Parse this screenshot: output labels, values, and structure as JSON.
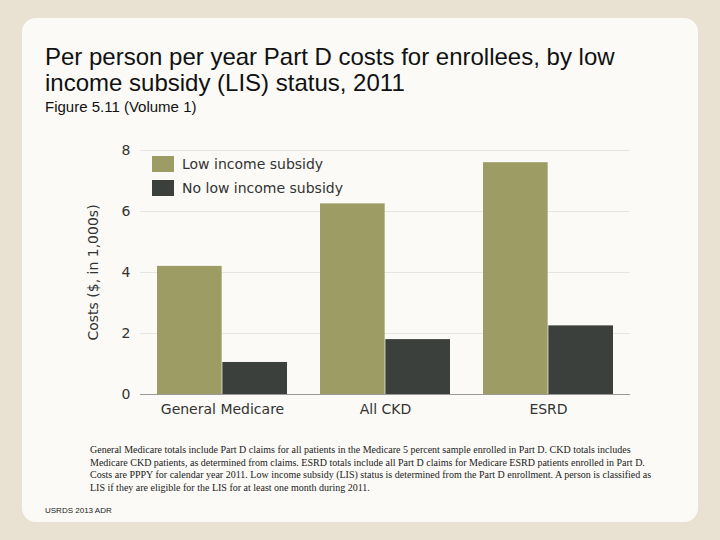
{
  "chart_data": {
    "type": "bar",
    "title": "Per person per year Part D costs for enrollees, by low income subsidy (LIS) status, 2011",
    "subtitle": "Figure 5.11 (Volume 1)",
    "y_label": "Costs ($, in 1,000s)",
    "categories": [
      "General Medicare",
      "All CKD",
      "ESRD"
    ],
    "series": [
      {
        "name": "Low income subsidy",
        "color": "#9c9c64",
        "values": [
          4.2,
          6.25,
          7.6
        ]
      },
      {
        "name": "No low income subsidy",
        "color": "#3c403d",
        "values": [
          1.05,
          1.8,
          2.25
        ]
      }
    ],
    "ylim": [
      0,
      8
    ],
    "yticks": [
      0,
      2,
      4,
      6,
      8
    ],
    "grid": true,
    "legend": "upper left",
    "caption": "General Medicare totals include Part D claims for all patients in the Medicare 5 percent sample enrolled in Part D. CKD totals includes Medicare CKD patients, as determined from claims. ESRD totals include all Part D claims for Medicare ESRD patients enrolled in Part D. Costs are PPPY for calendar year 2011. Low income subsidy (LIS) status is determined from the Part D enrollment. A person is classified as LIS if they are eligible for the LIS for at least one month during 2011.",
    "source": "USRDS 2013 ADR"
  }
}
